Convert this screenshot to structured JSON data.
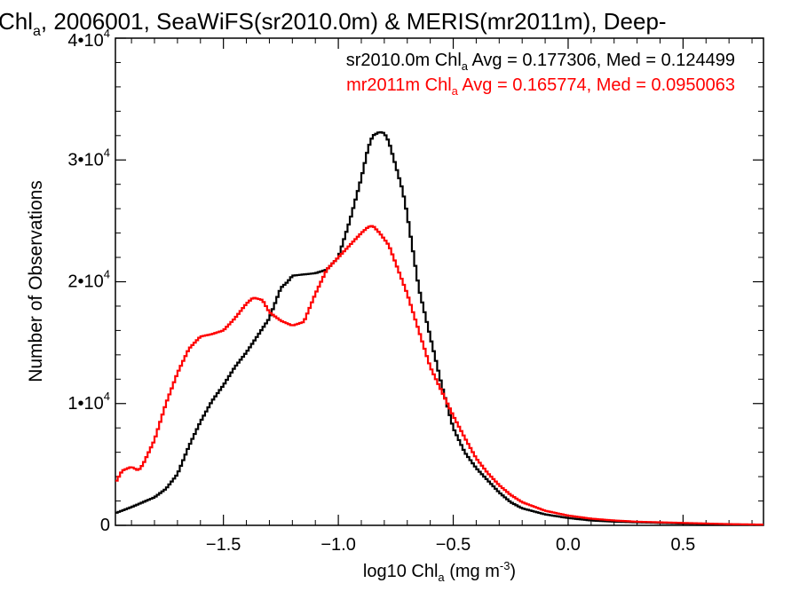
{
  "chart_data": {
    "type": "line",
    "title": "Chl",
    "title_sub": "a",
    "title_rest": ", 2006001, SeaWiFS(sr2010.0m) & MERIS(mr2011m), Deep-",
    "xlabel_pre": "log10 Chl",
    "xlabel_sub": "a",
    "xlabel_post": " (mg m",
    "xlabel_sup": "-3",
    "xlabel_close": ")",
    "ylabel": "Number of Observations",
    "xlim": [
      -1.97,
      0.85
    ],
    "ylim": [
      0,
      40000
    ],
    "x_ticks": [
      -1.5,
      -1.0,
      -0.5,
      0.0,
      0.5
    ],
    "x_tick_labels": [
      "−1.5",
      "−1.0",
      "−0.5",
      "0.0",
      "0.5"
    ],
    "y_ticks": [
      0,
      10000,
      20000,
      30000,
      40000
    ],
    "y_tick_labels": [
      {
        "base": "0",
        "exp": ""
      },
      {
        "base": "1•10",
        "exp": "4"
      },
      {
        "base": "2•10",
        "exp": "4"
      },
      {
        "base": "3•10",
        "exp": "4"
      },
      {
        "base": "4•10",
        "exp": "4"
      }
    ],
    "grid": false,
    "legend_placement": "top-right",
    "series": [
      {
        "name": "sr2010.0m",
        "color": "#000000",
        "legend": {
          "pre": "sr2010.0m Chl",
          "sub": "a",
          "post": " Avg = 0.177306, Med = 0.124499"
        },
        "points": [
          [
            -1.97,
            1000
          ],
          [
            -1.9,
            1500
          ],
          [
            -1.8,
            2300
          ],
          [
            -1.75,
            3000
          ],
          [
            -1.7,
            4200
          ],
          [
            -1.65,
            6500
          ],
          [
            -1.6,
            8500
          ],
          [
            -1.55,
            10200
          ],
          [
            -1.5,
            11500
          ],
          [
            -1.45,
            13000
          ],
          [
            -1.4,
            14200
          ],
          [
            -1.35,
            15600
          ],
          [
            -1.3,
            17000
          ],
          [
            -1.27,
            18500
          ],
          [
            -1.25,
            19500
          ],
          [
            -1.22,
            20000
          ],
          [
            -1.2,
            20500
          ],
          [
            -1.15,
            20600
          ],
          [
            -1.1,
            20700
          ],
          [
            -1.05,
            21000
          ],
          [
            -1.0,
            22000
          ],
          [
            -0.95,
            25000
          ],
          [
            -0.9,
            28500
          ],
          [
            -0.87,
            31000
          ],
          [
            -0.85,
            32000
          ],
          [
            -0.82,
            32300
          ],
          [
            -0.8,
            32200
          ],
          [
            -0.78,
            31500
          ],
          [
            -0.75,
            29500
          ],
          [
            -0.72,
            27500
          ],
          [
            -0.7,
            25500
          ],
          [
            -0.65,
            19500
          ],
          [
            -0.6,
            15500
          ],
          [
            -0.55,
            11500
          ],
          [
            -0.5,
            8000
          ],
          [
            -0.45,
            6000
          ],
          [
            -0.4,
            4700
          ],
          [
            -0.35,
            3700
          ],
          [
            -0.3,
            2700
          ],
          [
            -0.25,
            1900
          ],
          [
            -0.2,
            1400
          ],
          [
            -0.1,
            900
          ],
          [
            0.0,
            600
          ],
          [
            0.1,
            400
          ],
          [
            0.2,
            300
          ],
          [
            0.3,
            250
          ],
          [
            0.5,
            150
          ],
          [
            0.7,
            80
          ],
          [
            0.85,
            50
          ]
        ]
      },
      {
        "name": "mr2011m",
        "color": "#ff0000",
        "legend": {
          "pre": "mr2011m Chl",
          "sub": "a",
          "post": " Avg = 0.165774, Med = 0.0950063"
        },
        "points": [
          [
            -1.97,
            3500
          ],
          [
            -1.94,
            4500
          ],
          [
            -1.9,
            4800
          ],
          [
            -1.87,
            4500
          ],
          [
            -1.85,
            5000
          ],
          [
            -1.8,
            7000
          ],
          [
            -1.75,
            10000
          ],
          [
            -1.7,
            12500
          ],
          [
            -1.65,
            14500
          ],
          [
            -1.6,
            15500
          ],
          [
            -1.55,
            15700
          ],
          [
            -1.5,
            16000
          ],
          [
            -1.45,
            17000
          ],
          [
            -1.4,
            18200
          ],
          [
            -1.37,
            18700
          ],
          [
            -1.33,
            18500
          ],
          [
            -1.3,
            17500
          ],
          [
            -1.25,
            16800
          ],
          [
            -1.2,
            16400
          ],
          [
            -1.15,
            16700
          ],
          [
            -1.1,
            19000
          ],
          [
            -1.05,
            21000
          ],
          [
            -1.0,
            22000
          ],
          [
            -0.95,
            23000
          ],
          [
            -0.9,
            24000
          ],
          [
            -0.87,
            24500
          ],
          [
            -0.85,
            24600
          ],
          [
            -0.82,
            24000
          ],
          [
            -0.78,
            23000
          ],
          [
            -0.75,
            21500
          ],
          [
            -0.7,
            19000
          ],
          [
            -0.65,
            16000
          ],
          [
            -0.6,
            13000
          ],
          [
            -0.55,
            11000
          ],
          [
            -0.5,
            9000
          ],
          [
            -0.45,
            7200
          ],
          [
            -0.4,
            5500
          ],
          [
            -0.35,
            4300
          ],
          [
            -0.3,
            3300
          ],
          [
            -0.25,
            2500
          ],
          [
            -0.2,
            1900
          ],
          [
            -0.1,
            1200
          ],
          [
            0.0,
            800
          ],
          [
            0.1,
            550
          ],
          [
            0.2,
            400
          ],
          [
            0.3,
            300
          ],
          [
            0.5,
            200
          ],
          [
            0.7,
            100
          ],
          [
            0.85,
            60
          ]
        ]
      }
    ]
  }
}
